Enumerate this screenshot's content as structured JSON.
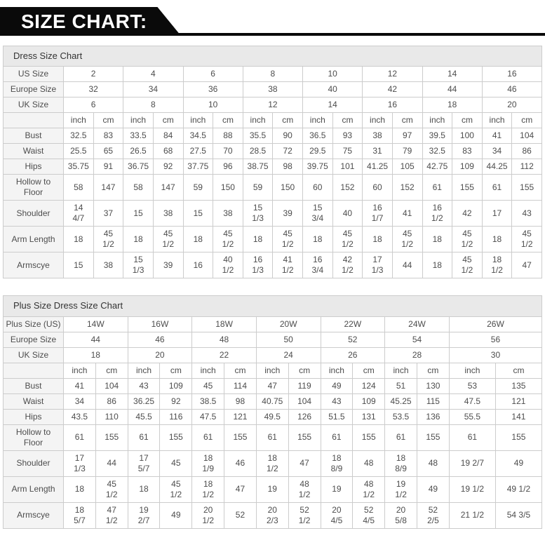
{
  "banner": {
    "title": "SIZE CHART:",
    "bg_color": "#0a0a0a",
    "text_color": "#ffffff"
  },
  "colors": {
    "table_border": "#cccccc",
    "section_header_bg": "#e9e9e9",
    "row_label_bg": "#f4f4f4",
    "text": "#4d4d4d"
  },
  "tables": [
    {
      "section_title": "Dress Size Chart",
      "size_rows": [
        {
          "label": "US Size",
          "values": [
            "2",
            "4",
            "6",
            "8",
            "10",
            "12",
            "14",
            "16"
          ]
        },
        {
          "label": "Europe Size",
          "values": [
            "32",
            "34",
            "36",
            "38",
            "40",
            "42",
            "44",
            "46"
          ]
        },
        {
          "label": "UK Size",
          "values": [
            "6",
            "8",
            "10",
            "12",
            "14",
            "16",
            "18",
            "20"
          ]
        }
      ],
      "unit_labels": [
        "inch",
        "cm"
      ],
      "measurement_rows": [
        {
          "label": "Bust",
          "values": [
            "32.5",
            "83",
            "33.5",
            "84",
            "34.5",
            "88",
            "35.5",
            "90",
            "36.5",
            "93",
            "38",
            "97",
            "39.5",
            "100",
            "41",
            "104"
          ]
        },
        {
          "label": "Waist",
          "values": [
            "25.5",
            "65",
            "26.5",
            "68",
            "27.5",
            "70",
            "28.5",
            "72",
            "29.5",
            "75",
            "31",
            "79",
            "32.5",
            "83",
            "34",
            "86"
          ]
        },
        {
          "label": "Hips",
          "values": [
            "35.75",
            "91",
            "36.75",
            "92",
            "37.75",
            "96",
            "38.75",
            "98",
            "39.75",
            "101",
            "41.25",
            "105",
            "42.75",
            "109",
            "44.25",
            "112"
          ]
        },
        {
          "label": "Hollow to Floor",
          "values": [
            "58",
            "147",
            "58",
            "147",
            "59",
            "150",
            "59",
            "150",
            "60",
            "152",
            "60",
            "152",
            "61",
            "155",
            "61",
            "155"
          ]
        },
        {
          "label": "Shoulder",
          "values": [
            "14 4/7",
            "37",
            "15",
            "38",
            "15",
            "38",
            "15 1/3",
            "39",
            "15 3/4",
            "40",
            "16 1/7",
            "41",
            "16 1/2",
            "42",
            "17",
            "43"
          ]
        },
        {
          "label": "Arm Length",
          "values": [
            "18",
            "45 1/2",
            "18",
            "45 1/2",
            "18",
            "45 1/2",
            "18",
            "45 1/2",
            "18",
            "45 1/2",
            "18",
            "45 1/2",
            "18",
            "45 1/2",
            "18",
            "45 1/2"
          ]
        },
        {
          "label": "Armscye",
          "values": [
            "15",
            "38",
            "15 1/3",
            "39",
            "16",
            "40 1/2",
            "16 1/3",
            "41 1/2",
            "16 3/4",
            "42 1/2",
            "17 1/3",
            "44",
            "18",
            "45 1/2",
            "18 1/2",
            "47"
          ]
        }
      ]
    },
    {
      "section_title": "Plus Size Dress Size Chart",
      "size_rows": [
        {
          "label": "Plus Size (US)",
          "values": [
            "14W",
            "16W",
            "18W",
            "20W",
            "22W",
            "24W",
            "26W"
          ]
        },
        {
          "label": "Europe Size",
          "values": [
            "44",
            "46",
            "48",
            "50",
            "52",
            "54",
            "56"
          ]
        },
        {
          "label": "UK Size",
          "values": [
            "18",
            "20",
            "22",
            "24",
            "26",
            "28",
            "30"
          ]
        }
      ],
      "unit_labels": [
        "inch",
        "cm"
      ],
      "measurement_rows": [
        {
          "label": "Bust",
          "values": [
            "41",
            "104",
            "43",
            "109",
            "45",
            "114",
            "47",
            "119",
            "49",
            "124",
            "51",
            "130",
            "53",
            "135"
          ]
        },
        {
          "label": "Waist",
          "values": [
            "34",
            "86",
            "36.25",
            "92",
            "38.5",
            "98",
            "40.75",
            "104",
            "43",
            "109",
            "45.25",
            "115",
            "47.5",
            "121"
          ]
        },
        {
          "label": "Hips",
          "values": [
            "43.5",
            "110",
            "45.5",
            "116",
            "47.5",
            "121",
            "49.5",
            "126",
            "51.5",
            "131",
            "53.5",
            "136",
            "55.5",
            "141"
          ]
        },
        {
          "label": "Hollow to Floor",
          "values": [
            "61",
            "155",
            "61",
            "155",
            "61",
            "155",
            "61",
            "155",
            "61",
            "155",
            "61",
            "155",
            "61",
            "155"
          ]
        },
        {
          "label": "Shoulder",
          "values": [
            "17 1/3",
            "44",
            "17 5/7",
            "45",
            "18 1/9",
            "46",
            "18 1/2",
            "47",
            "18 8/9",
            "48",
            "18 8/9",
            "48",
            "19 2/7",
            "49"
          ]
        },
        {
          "label": "Arm Length",
          "values": [
            "18",
            "45 1/2",
            "18",
            "45 1/2",
            "18 1/2",
            "47",
            "19",
            "48 1/2",
            "19",
            "48 1/2",
            "19 1/2",
            "49",
            "19 1/2",
            "49 1/2"
          ]
        },
        {
          "label": "Armscye",
          "values": [
            "18 5/7",
            "47 1/2",
            "19 2/7",
            "49",
            "20 1/2",
            "52",
            "20 2/3",
            "52 1/2",
            "20 4/5",
            "52 4/5",
            "20 5/8",
            "52 2/5",
            "21 1/2",
            "54 3/5"
          ]
        }
      ]
    }
  ]
}
